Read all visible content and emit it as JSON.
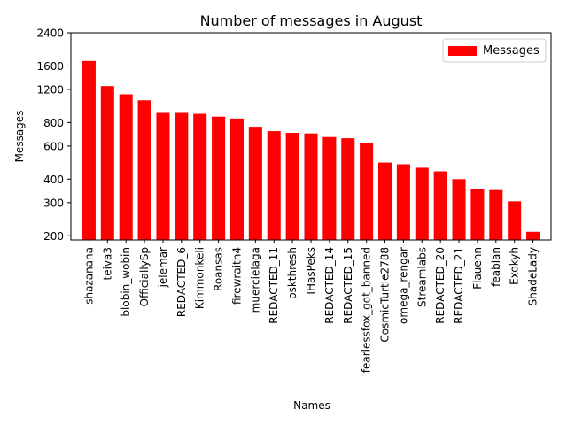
{
  "chart_data": {
    "type": "bar",
    "title": "Number of messages in August",
    "xlabel": "Names",
    "ylabel": "Messages",
    "yscale": "log",
    "ylim": [
      190,
      2400
    ],
    "yticks": [
      200,
      300,
      400,
      600,
      800,
      1200,
      1600,
      2400
    ],
    "grid": false,
    "legend_position": "top-right",
    "colors": {
      "bar": "#ff0000",
      "axis": "#000000",
      "background": "#ffffff"
    },
    "categories": [
      "shazanana",
      "teiva3",
      "blobin_wobin",
      "OfficiallySp",
      "jelemar",
      "REDACTED_6",
      "Kimmonkeli",
      "Roansas",
      "firewraith4",
      "muercielaga",
      "REDACTED_11",
      "pskthresh",
      "IHasPeks",
      "REDACTED_14",
      "REDACTED_15",
      "fearlessfox_got_banned",
      "CosmicTurtle2788",
      "omega_rengar",
      "Streamlabs",
      "REDACTED_20",
      "REDACTED_21",
      "Flauenn",
      "feabian",
      "Exokyh",
      "ShadeLady"
    ],
    "series": [
      {
        "name": "Messages",
        "values": [
          1700,
          1250,
          1130,
          1050,
          900,
          900,
          890,
          860,
          840,
          760,
          720,
          705,
          700,
          670,
          660,
          620,
          490,
          480,
          460,
          440,
          400,
          355,
          350,
          305,
          210
        ]
      }
    ]
  }
}
